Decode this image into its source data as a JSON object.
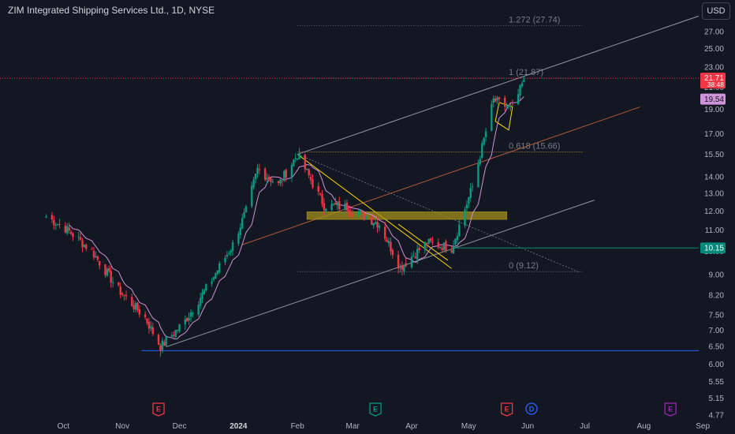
{
  "header": {
    "title": "ZIM Integrated Shipping Services Ltd., 1D, NYSE",
    "currency": "USD"
  },
  "price_axis": {
    "ticks": [
      "27.00",
      "25.00",
      "23.00",
      "21.00",
      "19.00",
      "17.00",
      "15.50",
      "14.00",
      "13.00",
      "12.00",
      "11.00",
      "10.00",
      "9.00",
      "8.20",
      "7.50",
      "7.00",
      "6.50",
      "6.00",
      "5.55",
      "5.15",
      "4.77"
    ],
    "last_price": "21.71",
    "countdown": "38:48",
    "ma_value": "19.54",
    "line_value": "10.15",
    "colors": {
      "last_price_bg": "#f23645",
      "ma_bg": "#ce93d8",
      "line_bg": "#00897b"
    }
  },
  "time_axis": {
    "labels": [
      {
        "text": "Oct",
        "bold": false
      },
      {
        "text": "Nov",
        "bold": false
      },
      {
        "text": "Dec",
        "bold": false
      },
      {
        "text": "2024",
        "bold": true
      },
      {
        "text": "Feb",
        "bold": false
      },
      {
        "text": "Mar",
        "bold": false
      },
      {
        "text": "Apr",
        "bold": false
      },
      {
        "text": "May",
        "bold": false
      },
      {
        "text": "Jun",
        "bold": false
      },
      {
        "text": "Jul",
        "bold": false
      },
      {
        "text": "Aug",
        "bold": false
      },
      {
        "text": "Sep",
        "bold": false
      }
    ]
  },
  "events": [
    {
      "letter": "E",
      "kind": "earnings",
      "color": "#f23645"
    },
    {
      "letter": "E",
      "kind": "earnings",
      "color": "#089981"
    },
    {
      "letter": "E",
      "kind": "earnings",
      "color": "#f23645"
    },
    {
      "letter": "D",
      "kind": "dividend",
      "color": "#2962ff"
    },
    {
      "letter": "E",
      "kind": "earnings-upcoming",
      "color": "#9c27b0"
    }
  ],
  "fib_levels": [
    {
      "label": "1.272 (27.74)",
      "value": 27.74
    },
    {
      "label": "1 (21.87)",
      "value": 21.87
    },
    {
      "label": "0.618 (15.66)",
      "value": 15.66
    },
    {
      "label": "0 (9.12)",
      "value": 9.12
    }
  ],
  "chart_data": {
    "type": "candlestick",
    "symbol": "ZIM",
    "interval": "1D",
    "exchange": "NYSE",
    "y_scale": "log",
    "ylim": [
      4.7,
      29
    ],
    "ohlc_points": [
      {
        "date": "2023-09-22",
        "close": 11.7
      },
      {
        "date": "2023-10-02",
        "close": 11.1
      },
      {
        "date": "2023-10-16",
        "close": 10.0
      },
      {
        "date": "2023-10-30",
        "close": 8.4
      },
      {
        "date": "2023-11-13",
        "close": 7.4
      },
      {
        "date": "2023-11-21",
        "close": 6.49
      },
      {
        "date": "2023-12-04",
        "close": 7.3
      },
      {
        "date": "2023-12-18",
        "close": 8.8
      },
      {
        "date": "2023-12-29",
        "close": 10.3
      },
      {
        "date": "2024-01-05",
        "close": 12.0
      },
      {
        "date": "2024-01-11",
        "close": 14.5
      },
      {
        "date": "2024-01-22",
        "close": 13.5
      },
      {
        "date": "2024-02-01",
        "close": 15.5
      },
      {
        "date": "2024-02-15",
        "close": 12.3
      },
      {
        "date": "2024-02-28",
        "close": 12.2
      },
      {
        "date": "2024-03-15",
        "close": 11.3
      },
      {
        "date": "2024-03-26",
        "close": 9.3
      },
      {
        "date": "2024-04-09",
        "close": 10.4
      },
      {
        "date": "2024-04-22",
        "close": 10.15
      },
      {
        "date": "2024-05-03",
        "close": 13.4
      },
      {
        "date": "2024-05-14",
        "close": 19.8
      },
      {
        "date": "2024-05-24",
        "close": 19.0
      },
      {
        "date": "2024-05-30",
        "close": 21.71
      }
    ],
    "moving_average": {
      "last": 19.54,
      "color": "#ce93d8"
    },
    "horizontal_lines": [
      {
        "value": 10.15,
        "color": "#00897b"
      },
      {
        "value": 6.38,
        "color": "#2962ff"
      },
      {
        "value": 21.87,
        "color": "#f23645",
        "style": "dotted"
      }
    ],
    "last_price": 21.71
  }
}
